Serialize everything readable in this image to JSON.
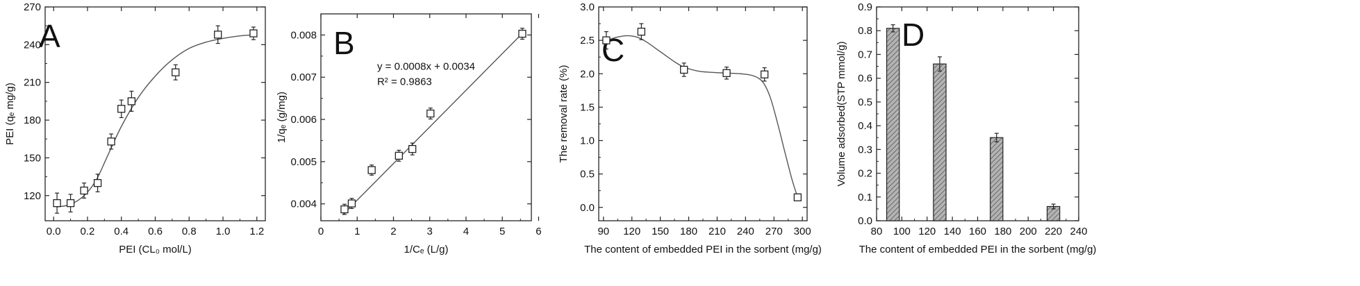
{
  "chart_data": [
    {
      "panel": "A",
      "type": "scatter",
      "xlabel": "PEI (CL₀ mol/L)",
      "ylabel": "PEI (qₑ mg/g)",
      "xlim": [
        -0.05,
        1.25
      ],
      "ylim": [
        100,
        270
      ],
      "xticks": [
        0.0,
        0.2,
        0.4,
        0.6,
        0.8,
        1.0,
        1.2
      ],
      "xticklabels": [
        "0.0",
        "0.2",
        "0.4",
        "0.6",
        "0.8",
        "1.0",
        "1.2"
      ],
      "yticks": [
        120,
        150,
        180,
        210,
        240,
        270
      ],
      "yticklabels": [
        "120",
        "150",
        "180",
        "210",
        "240",
        "270"
      ],
      "points": [
        {
          "x": 0.02,
          "y": 114,
          "err": 8
        },
        {
          "x": 0.1,
          "y": 114,
          "err": 7
        },
        {
          "x": 0.18,
          "y": 124,
          "err": 6
        },
        {
          "x": 0.26,
          "y": 130,
          "err": 7
        },
        {
          "x": 0.34,
          "y": 163,
          "err": 6
        },
        {
          "x": 0.4,
          "y": 189,
          "err": 7
        },
        {
          "x": 0.46,
          "y": 195,
          "err": 8
        },
        {
          "x": 0.72,
          "y": 218,
          "err": 6
        },
        {
          "x": 0.97,
          "y": 248,
          "err": 7
        },
        {
          "x": 1.18,
          "y": 249,
          "err": 5
        }
      ],
      "fit": [
        [
          0.02,
          111
        ],
        [
          0.1,
          113
        ],
        [
          0.18,
          120
        ],
        [
          0.25,
          132
        ],
        [
          0.32,
          152
        ],
        [
          0.4,
          175
        ],
        [
          0.5,
          198
        ],
        [
          0.6,
          215
        ],
        [
          0.7,
          228
        ],
        [
          0.8,
          237
        ],
        [
          0.9,
          242
        ],
        [
          1.0,
          245
        ],
        [
          1.1,
          247
        ],
        [
          1.2,
          248
        ]
      ],
      "grid": false
    },
    {
      "panel": "B",
      "type": "scatter",
      "xlabel": "1/Cₑ (L/g)",
      "ylabel": "1/qₑ (g/mg)",
      "xlim": [
        0,
        5.8
      ],
      "ylim": [
        0.0036,
        0.0085
      ],
      "xticks": [
        0,
        1,
        2,
        3,
        4,
        5,
        6
      ],
      "xticklabels": [
        "0",
        "1",
        "2",
        "3",
        "4",
        "5",
        "6"
      ],
      "yticks": [
        0.004,
        0.005,
        0.006,
        0.007,
        0.008
      ],
      "yticklabels": [
        "0.004",
        "0.005",
        "0.006",
        "0.007",
        "0.008"
      ],
      "points": [
        {
          "x": 0.65,
          "y": 0.00387,
          "err": 0.00012
        },
        {
          "x": 0.85,
          "y": 0.00401,
          "err": 0.00012
        },
        {
          "x": 1.4,
          "y": 0.0048,
          "err": 0.00012
        },
        {
          "x": 2.15,
          "y": 0.00514,
          "err": 0.00013
        },
        {
          "x": 2.52,
          "y": 0.0053,
          "err": 0.00014
        },
        {
          "x": 3.02,
          "y": 0.00614,
          "err": 0.00013
        },
        {
          "x": 5.55,
          "y": 0.00803,
          "err": 0.00013
        }
      ],
      "fit": [
        [
          0.6,
          0.00374
        ],
        [
          5.6,
          0.00808
        ]
      ],
      "annotations": [
        "y = 0.0008x + 0.0034",
        "R² = 0.9863"
      ],
      "grid": false
    },
    {
      "panel": "C",
      "type": "scatter",
      "xlabel": "The content of embedded PEI in the sorbent (mg/g)",
      "ylabel": "The removal rate (%)",
      "xlim": [
        85,
        305
      ],
      "ylim": [
        -0.2,
        3.0
      ],
      "xticks": [
        90,
        120,
        150,
        180,
        210,
        240,
        270,
        300
      ],
      "xticklabels": [
        "90",
        "120",
        "150",
        "180",
        "210",
        "240",
        "270",
        "300"
      ],
      "yticks": [
        0.0,
        0.5,
        1.0,
        1.5,
        2.0,
        2.5,
        3.0
      ],
      "yticklabels": [
        "0.0",
        "0.5",
        "1.0",
        "1.5",
        "2.0",
        "2.5",
        "3.0"
      ],
      "points": [
        {
          "x": 93,
          "y": 2.5,
          "err": 0.13
        },
        {
          "x": 130,
          "y": 2.63,
          "err": 0.12
        },
        {
          "x": 175,
          "y": 2.06,
          "err": 0.1
        },
        {
          "x": 220,
          "y": 2.01,
          "err": 0.09
        },
        {
          "x": 260,
          "y": 1.99,
          "err": 0.1
        },
        {
          "x": 295,
          "y": 0.15,
          "err": 0.05
        }
      ],
      "fit": [
        [
          93,
          2.5
        ],
        [
          105,
          2.55
        ],
        [
          115,
          2.57
        ],
        [
          125,
          2.55
        ],
        [
          135,
          2.48
        ],
        [
          150,
          2.33
        ],
        [
          165,
          2.18
        ],
        [
          175,
          2.1
        ],
        [
          190,
          2.04
        ],
        [
          205,
          2.02
        ],
        [
          220,
          2.01
        ],
        [
          235,
          2.0
        ],
        [
          248,
          1.97
        ],
        [
          258,
          1.88
        ],
        [
          266,
          1.65
        ],
        [
          274,
          1.25
        ],
        [
          282,
          0.8
        ],
        [
          289,
          0.42
        ],
        [
          295,
          0.15
        ]
      ],
      "grid": false
    },
    {
      "panel": "D",
      "type": "bar",
      "xlabel": "The content of embedded PEI in the sorbent (mg/g)",
      "ylabel": "Volume adsorbed(STP mmol/g)",
      "xlim": [
        80,
        240
      ],
      "ylim": [
        0,
        0.9
      ],
      "xticks": [
        80,
        100,
        120,
        140,
        160,
        180,
        200,
        220,
        240
      ],
      "xticklabels": [
        "80",
        "100",
        "120",
        "140",
        "160",
        "180",
        "200",
        "220",
        "240"
      ],
      "yticks": [
        0.0,
        0.1,
        0.2,
        0.3,
        0.4,
        0.5,
        0.6,
        0.7,
        0.8,
        0.9
      ],
      "yticklabels": [
        "0.0",
        "0.1",
        "0.2",
        "0.3",
        "0.4",
        "0.5",
        "0.6",
        "0.7",
        "0.8",
        "0.9"
      ],
      "bars": [
        {
          "x": 93,
          "value": 0.81,
          "err": 0.015
        },
        {
          "x": 130,
          "value": 0.66,
          "err": 0.03
        },
        {
          "x": 175,
          "value": 0.35,
          "err": 0.018
        },
        {
          "x": 220,
          "value": 0.06,
          "err": 0.01
        }
      ],
      "bar_width": 10,
      "grid": false
    }
  ],
  "colors": {
    "axis": "#222222",
    "marker_fill": "#ffffff",
    "bar_fill": "#9a9a9a",
    "line": "#555555"
  }
}
